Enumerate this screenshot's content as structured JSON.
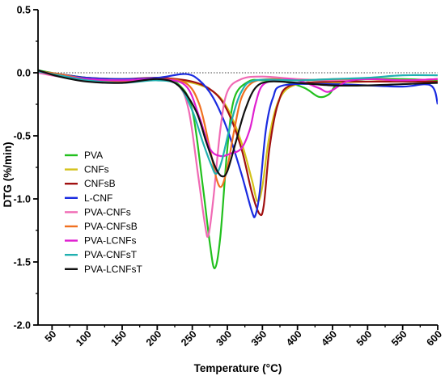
{
  "chart_data": {
    "type": "line",
    "xlabel": "Temperature (°C)",
    "ylabel": "DTG (%/min)",
    "xlim": [
      30,
      600
    ],
    "ylim": [
      -2.0,
      0.5
    ],
    "x_ticks": [
      50,
      100,
      150,
      200,
      250,
      300,
      350,
      400,
      450,
      500,
      550,
      600
    ],
    "y_ticks": [
      0.5,
      0.0,
      -0.5,
      -1.0,
      -1.5,
      -2.0
    ],
    "x_tick_labels": [
      "50",
      "100",
      "150",
      "200",
      "250",
      "300",
      "350",
      "400",
      "450",
      "500",
      "550",
      "600"
    ],
    "y_tick_labels": [
      "0.5",
      "0.0",
      "-0.5",
      "-1.0",
      "-1.5",
      "-2.0"
    ],
    "reference_line_y": 0.0,
    "legend_position": "left-center",
    "grid": false,
    "series": [
      {
        "name": "PVA",
        "color": "#22c01e",
        "points": [
          [
            30,
            0.02
          ],
          [
            60,
            -0.01
          ],
          [
            100,
            -0.04
          ],
          [
            150,
            -0.07
          ],
          [
            200,
            -0.05
          ],
          [
            230,
            -0.09
          ],
          [
            250,
            -0.3
          ],
          [
            265,
            -0.9
          ],
          [
            275,
            -1.35
          ],
          [
            282,
            -1.55
          ],
          [
            290,
            -1.3
          ],
          [
            300,
            -0.6
          ],
          [
            310,
            -0.2
          ],
          [
            330,
            -0.07
          ],
          [
            350,
            -0.06
          ],
          [
            380,
            -0.07
          ],
          [
            410,
            -0.12
          ],
          [
            430,
            -0.19
          ],
          [
            445,
            -0.17
          ],
          [
            460,
            -0.08
          ],
          [
            500,
            -0.05
          ],
          [
            550,
            -0.05
          ],
          [
            600,
            -0.06
          ]
        ]
      },
      {
        "name": "CNFs",
        "color": "#d4c21a",
        "points": [
          [
            30,
            0.01
          ],
          [
            60,
            -0.02
          ],
          [
            100,
            -0.04
          ],
          [
            150,
            -0.05
          ],
          [
            200,
            -0.05
          ],
          [
            250,
            -0.08
          ],
          [
            280,
            -0.15
          ],
          [
            300,
            -0.28
          ],
          [
            320,
            -0.55
          ],
          [
            335,
            -0.85
          ],
          [
            343,
            -1.02
          ],
          [
            350,
            -0.9
          ],
          [
            360,
            -0.5
          ],
          [
            375,
            -0.2
          ],
          [
            400,
            -0.09
          ],
          [
            450,
            -0.08
          ],
          [
            500,
            -0.07
          ],
          [
            550,
            -0.07
          ],
          [
            600,
            -0.07
          ]
        ]
      },
      {
        "name": "CNFsB",
        "color": "#a01010",
        "points": [
          [
            30,
            0.01
          ],
          [
            60,
            -0.01
          ],
          [
            100,
            -0.04
          ],
          [
            150,
            -0.05
          ],
          [
            200,
            -0.04
          ],
          [
            250,
            -0.07
          ],
          [
            280,
            -0.15
          ],
          [
            300,
            -0.3
          ],
          [
            320,
            -0.6
          ],
          [
            335,
            -0.95
          ],
          [
            346,
            -1.12
          ],
          [
            352,
            -1.05
          ],
          [
            360,
            -0.6
          ],
          [
            372,
            -0.25
          ],
          [
            390,
            -0.1
          ],
          [
            450,
            -0.07
          ],
          [
            500,
            -0.07
          ],
          [
            550,
            -0.07
          ],
          [
            600,
            -0.07
          ]
        ]
      },
      {
        "name": "L-CNF",
        "color": "#1a2be0",
        "points": [
          [
            30,
            0.01
          ],
          [
            60,
            -0.01
          ],
          [
            100,
            -0.04
          ],
          [
            150,
            -0.05
          ],
          [
            200,
            -0.04
          ],
          [
            240,
            -0.01
          ],
          [
            260,
            -0.06
          ],
          [
            280,
            -0.2
          ],
          [
            300,
            -0.45
          ],
          [
            320,
            -0.8
          ],
          [
            335,
            -1.1
          ],
          [
            340,
            -1.13
          ],
          [
            346,
            -0.95
          ],
          [
            355,
            -0.45
          ],
          [
            365,
            -0.2
          ],
          [
            380,
            -0.1
          ],
          [
            450,
            -0.09
          ],
          [
            500,
            -0.1
          ],
          [
            550,
            -0.11
          ],
          [
            590,
            -0.1
          ],
          [
            600,
            -0.25
          ]
        ]
      },
      {
        "name": "PVA-CNFs",
        "color": "#f06ab4",
        "points": [
          [
            30,
            0.0
          ],
          [
            60,
            -0.03
          ],
          [
            100,
            -0.05
          ],
          [
            150,
            -0.06
          ],
          [
            200,
            -0.05
          ],
          [
            230,
            -0.1
          ],
          [
            245,
            -0.3
          ],
          [
            258,
            -0.8
          ],
          [
            268,
            -1.2
          ],
          [
            273,
            -1.29
          ],
          [
            280,
            -1.0
          ],
          [
            290,
            -0.45
          ],
          [
            300,
            -0.15
          ],
          [
            320,
            -0.05
          ],
          [
            350,
            -0.03
          ],
          [
            400,
            -0.05
          ],
          [
            450,
            -0.06
          ],
          [
            500,
            -0.05
          ],
          [
            550,
            -0.06
          ],
          [
            600,
            -0.05
          ]
        ]
      },
      {
        "name": "PVA-CNFsB",
        "color": "#f07020",
        "points": [
          [
            30,
            0.01
          ],
          [
            60,
            -0.01
          ],
          [
            100,
            -0.05
          ],
          [
            150,
            -0.07
          ],
          [
            200,
            -0.05
          ],
          [
            240,
            -0.08
          ],
          [
            260,
            -0.25
          ],
          [
            275,
            -0.6
          ],
          [
            285,
            -0.85
          ],
          [
            292,
            -0.9
          ],
          [
            300,
            -0.75
          ],
          [
            310,
            -0.45
          ],
          [
            320,
            -0.2
          ],
          [
            335,
            -0.08
          ],
          [
            360,
            -0.05
          ],
          [
            400,
            -0.06
          ],
          [
            450,
            -0.05
          ],
          [
            500,
            -0.05
          ],
          [
            550,
            -0.06
          ],
          [
            600,
            -0.05
          ]
        ]
      },
      {
        "name": "PVA-LCNFs",
        "color": "#e020d0",
        "points": [
          [
            30,
            0.01
          ],
          [
            60,
            -0.02
          ],
          [
            100,
            -0.05
          ],
          [
            150,
            -0.06
          ],
          [
            200,
            -0.05
          ],
          [
            240,
            -0.1
          ],
          [
            260,
            -0.35
          ],
          [
            275,
            -0.6
          ],
          [
            290,
            -0.66
          ],
          [
            305,
            -0.64
          ],
          [
            320,
            -0.6
          ],
          [
            332,
            -0.45
          ],
          [
            340,
            -0.25
          ],
          [
            350,
            -0.1
          ],
          [
            370,
            -0.06
          ],
          [
            400,
            -0.06
          ],
          [
            430,
            -0.12
          ],
          [
            445,
            -0.15
          ],
          [
            470,
            -0.07
          ],
          [
            500,
            -0.05
          ],
          [
            550,
            -0.06
          ],
          [
            600,
            -0.05
          ]
        ]
      },
      {
        "name": "PVA-CNFsT",
        "color": "#20b0b0",
        "points": [
          [
            30,
            0.01
          ],
          [
            60,
            -0.02
          ],
          [
            100,
            -0.06
          ],
          [
            150,
            -0.08
          ],
          [
            200,
            -0.06
          ],
          [
            230,
            -0.1
          ],
          [
            250,
            -0.3
          ],
          [
            265,
            -0.55
          ],
          [
            277,
            -0.73
          ],
          [
            284,
            -0.8
          ],
          [
            292,
            -0.7
          ],
          [
            305,
            -0.4
          ],
          [
            320,
            -0.15
          ],
          [
            340,
            -0.06
          ],
          [
            400,
            -0.06
          ],
          [
            450,
            -0.05
          ],
          [
            500,
            -0.04
          ],
          [
            550,
            -0.02
          ],
          [
            600,
            -0.02
          ]
        ]
      },
      {
        "name": "PVA-LCNFsT",
        "color": "#111111",
        "points": [
          [
            30,
            0.02
          ],
          [
            60,
            -0.03
          ],
          [
            100,
            -0.07
          ],
          [
            150,
            -0.08
          ],
          [
            200,
            -0.05
          ],
          [
            230,
            -0.1
          ],
          [
            255,
            -0.3
          ],
          [
            270,
            -0.55
          ],
          [
            283,
            -0.75
          ],
          [
            292,
            -0.82
          ],
          [
            300,
            -0.78
          ],
          [
            312,
            -0.55
          ],
          [
            325,
            -0.3
          ],
          [
            340,
            -0.12
          ],
          [
            360,
            -0.07
          ],
          [
            400,
            -0.08
          ],
          [
            450,
            -0.1
          ],
          [
            500,
            -0.1
          ],
          [
            550,
            -0.09
          ],
          [
            600,
            -0.08
          ]
        ]
      }
    ]
  }
}
